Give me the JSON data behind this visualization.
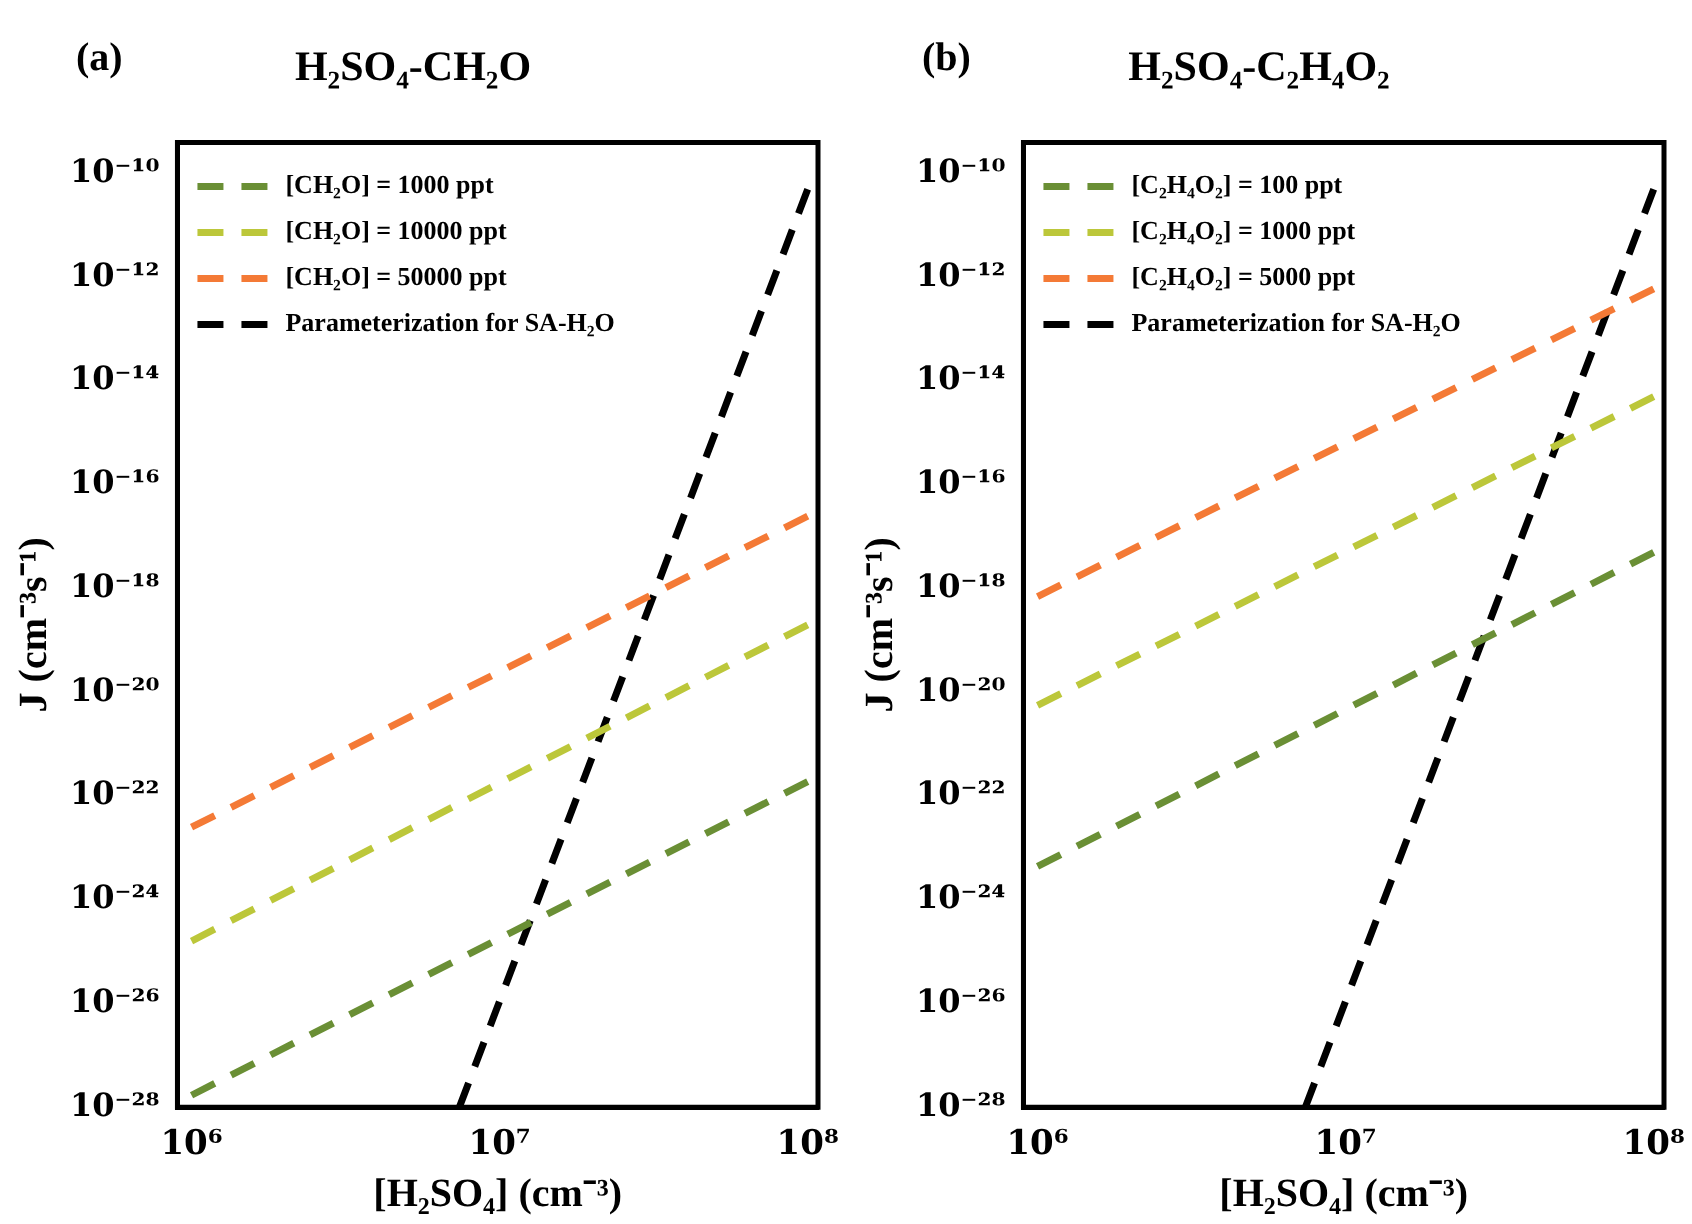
{
  "chart_data": [
    {
      "type": "line",
      "title": "H₂SO₄-CH₂O",
      "annotations": [
        "(a)"
      ],
      "xlabel": "[H₂SO₄] (cm⁻³)",
      "ylabel": "J (cm⁻³s⁻¹)",
      "log": "xy",
      "xlim": [
        900000,
        108000000
      ],
      "ylim": [
        1e-28,
        4e-10
      ],
      "xticks": [
        {
          "value": 1000000,
          "label": "10⁶"
        },
        {
          "value": 10000000,
          "label": "10⁷"
        },
        {
          "value": 100000000,
          "label": "10⁸"
        }
      ],
      "yticks": [
        {
          "value": 1e-10,
          "label": "10⁻¹⁰"
        },
        {
          "value": 1e-12,
          "label": "10⁻¹²"
        },
        {
          "value": 1e-14,
          "label": "10⁻¹⁴"
        },
        {
          "value": 1e-16,
          "label": "10⁻¹⁶"
        },
        {
          "value": 1e-18,
          "label": "10⁻¹⁸"
        },
        {
          "value": 1e-20,
          "label": "10⁻²⁰"
        },
        {
          "value": 1e-22,
          "label": "10⁻²²"
        },
        {
          "value": 1e-24,
          "label": "10⁻²⁴"
        },
        {
          "value": 1e-26,
          "label": "10⁻²⁶"
        },
        {
          "value": 1e-28,
          "label": "10⁻²⁸"
        }
      ],
      "legend": "top left",
      "grid": false,
      "marker": "none",
      "line_style": "dashed",
      "series": [
        {
          "name": "[CH₂O] = 1000 ppt",
          "color": "#6a8f35",
          "x": [
            1000000,
            100000000
          ],
          "values": [
            1.7e-28,
            1.9e-22
          ]
        },
        {
          "name": "[CH₂O] = 10000 ppt",
          "color": "#bcc73a",
          "x": [
            1000000,
            100000000
          ],
          "values": [
            1.6e-25,
            2e-19
          ]
        },
        {
          "name": "[CH₂O] = 50000 ppt",
          "color": "#f47a36",
          "x": [
            1000000,
            100000000
          ],
          "values": [
            2.5e-23,
            2.5e-17
          ]
        },
        {
          "name": "Parameterization for SA-H₂O",
          "color": "#000000",
          "x": [
            7400000,
            100000000
          ],
          "values": [
            1e-28,
            5e-11
          ]
        }
      ]
    },
    {
      "type": "line",
      "title": "H₂SO₄-C₂H₄O₂",
      "annotations": [
        "(b)"
      ],
      "xlabel": "[H₂SO₄] (cm⁻³)",
      "ylabel": "J (cm⁻³s⁻¹)",
      "log": "xy",
      "xlim": [
        900000,
        108000000
      ],
      "ylim": [
        1e-28,
        4e-10
      ],
      "xticks": [
        {
          "value": 1000000,
          "label": "10⁶"
        },
        {
          "value": 10000000,
          "label": "10⁷"
        },
        {
          "value": 100000000,
          "label": "10⁸"
        }
      ],
      "yticks": [
        {
          "value": 1e-10,
          "label": "10⁻¹⁰"
        },
        {
          "value": 1e-12,
          "label": "10⁻¹²"
        },
        {
          "value": 1e-14,
          "label": "10⁻¹⁴"
        },
        {
          "value": 1e-16,
          "label": "10⁻¹⁶"
        },
        {
          "value": 1e-18,
          "label": "10⁻¹⁸"
        },
        {
          "value": 1e-20,
          "label": "10⁻²⁰"
        },
        {
          "value": 1e-22,
          "label": "10⁻²²"
        },
        {
          "value": 1e-24,
          "label": "10⁻²⁴"
        },
        {
          "value": 1e-26,
          "label": "10⁻²⁶"
        },
        {
          "value": 1e-28,
          "label": "10⁻²⁸"
        }
      ],
      "legend": "top left",
      "grid": false,
      "marker": "none",
      "line_style": "dashed",
      "series": [
        {
          "name": "[C₂H₄O₂] = 100 ppt",
          "color": "#6a8f35",
          "x": [
            1000000,
            100000000
          ],
          "values": [
            4.4e-24,
            5e-18
          ]
        },
        {
          "name": "[C₂H₄O₂] = 1000 ppt",
          "color": "#bcc73a",
          "x": [
            1000000,
            100000000
          ],
          "values": [
            5.6e-21,
            5e-15
          ]
        },
        {
          "name": "[C₂H₄O₂] = 5000 ppt",
          "color": "#f47a36",
          "x": [
            1000000,
            100000000
          ],
          "values": [
            7e-19,
            6e-13
          ]
        },
        {
          "name": "Parameterization for SA-H₂O",
          "color": "#000000",
          "x": [
            7400000,
            100000000
          ],
          "values": [
            1e-28,
            5e-11
          ]
        }
      ]
    }
  ]
}
